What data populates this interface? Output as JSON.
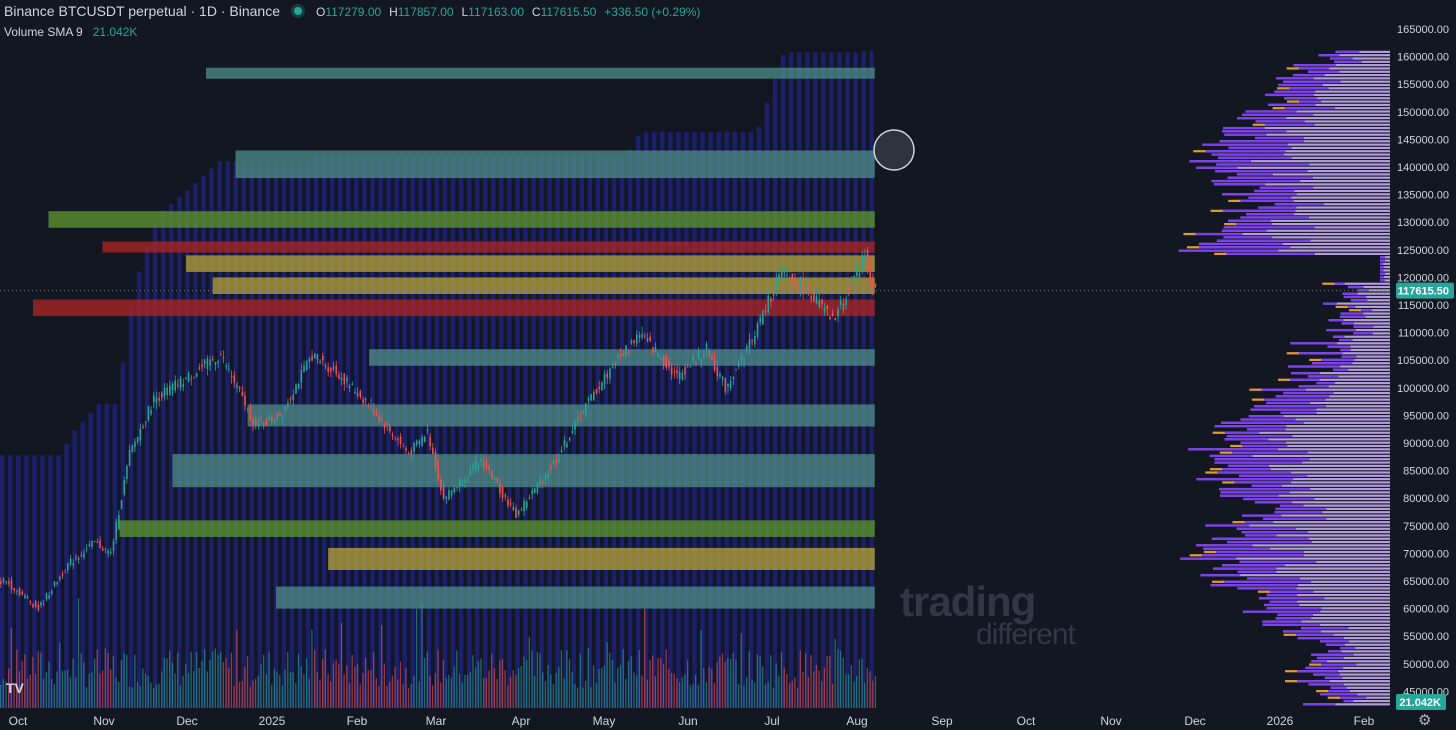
{
  "header": {
    "symbol": "Binance BTCUSDT perpetual · 1D · Binance",
    "open_label": "O",
    "open": "117279.00",
    "high_label": "H",
    "high": "117857.00",
    "low_label": "L",
    "low": "117163.00",
    "close_label": "C",
    "close": "117615.50",
    "change": "+336.50 (+0.29%)"
  },
  "volume_indicator": {
    "label": "Volume SMA 9",
    "value": "21.042K"
  },
  "watermark": {
    "line1": "trading",
    "line2": "different"
  },
  "tv_logo": "TV",
  "settings_icon": "gear-icon",
  "colors": {
    "background": "#131722",
    "heatmap_base": "#1c1f6b",
    "heatmap_low": "#4f8f8a",
    "heatmap_mid": "#5f9a2e",
    "heatmap_high": "#b8a538",
    "heatmap_max": "#b02626",
    "candle_up": "#26a69a",
    "candle_down": "#ef5350",
    "profile_light": "#b39ddb",
    "profile_mid": "#7e3ff2",
    "profile_accent": "#e39b2f",
    "last_price_tag": "#26a69a"
  },
  "chart_data": {
    "type": "candlestick",
    "timeframe": "1D",
    "x_axis": {
      "type": "date",
      "ticks": [
        "Oct",
        "Nov",
        "Dec",
        "2025",
        "Feb",
        "Mar",
        "Apr",
        "May",
        "Jun",
        "Jul",
        "Aug",
        "Sep",
        "Oct",
        "Nov",
        "Dec",
        "2026",
        "Feb"
      ]
    },
    "y_axis": {
      "ticks": [
        "165000.00",
        "160000.00",
        "155000.00",
        "150000.00",
        "145000.00",
        "140000.00",
        "135000.00",
        "130000.00",
        "125000.00",
        "120000.00",
        "115000.00",
        "110000.00",
        "105000.00",
        "100000.00",
        "95000.00",
        "90000.00",
        "85000.00",
        "80000.00",
        "75000.00",
        "70000.00",
        "65000.00",
        "60000.00",
        "55000.00",
        "50000.00",
        "45000.00"
      ],
      "range": [
        42000,
        167000
      ]
    },
    "last_price": 117615.5,
    "last_price_label": "117615.50",
    "volume_tag": "21.042K",
    "price_path": [
      [
        "2024-09-28",
        65000
      ],
      [
        "2024-10-10",
        60000
      ],
      [
        "2024-10-21",
        68000
      ],
      [
        "2024-10-31",
        72000
      ],
      [
        "2024-11-06",
        70000
      ],
      [
        "2024-11-13",
        88000
      ],
      [
        "2024-11-22",
        98000
      ],
      [
        "2024-12-05",
        102000
      ],
      [
        "2024-12-17",
        106000
      ],
      [
        "2024-12-30",
        93000
      ],
      [
        "2025-01-08",
        95000
      ],
      [
        "2025-01-20",
        106000
      ],
      [
        "2025-01-31",
        102000
      ],
      [
        "2025-02-10",
        97000
      ],
      [
        "2025-02-25",
        88000
      ],
      [
        "2025-03-04",
        92000
      ],
      [
        "2025-03-10",
        80000
      ],
      [
        "2025-03-24",
        87000
      ],
      [
        "2025-04-06",
        77000
      ],
      [
        "2025-04-21",
        87000
      ],
      [
        "2025-05-01",
        96000
      ],
      [
        "2025-05-12",
        104000
      ],
      [
        "2025-05-22",
        110000
      ],
      [
        "2025-06-05",
        102000
      ],
      [
        "2025-06-16",
        107000
      ],
      [
        "2025-06-23",
        100000
      ],
      [
        "2025-07-03",
        109000
      ],
      [
        "2025-07-14",
        121000
      ],
      [
        "2025-07-25",
        117000
      ],
      [
        "2025-08-02",
        112000
      ],
      [
        "2025-08-14",
        124000
      ],
      [
        "2025-08-17",
        117615
      ]
    ],
    "volume_profile_note": "",
    "heatmap_bands": [
      {
        "low": 156000,
        "high": 158000,
        "level": "low"
      },
      {
        "low": 138000,
        "high": 143000,
        "level": "low"
      },
      {
        "low": 129000,
        "high": 132000,
        "level": "mid"
      },
      {
        "low": 124500,
        "high": 126500,
        "level": "max"
      },
      {
        "low": 121000,
        "high": 124000,
        "level": "high"
      },
      {
        "low": 117000,
        "high": 120000,
        "level": "high"
      },
      {
        "low": 113000,
        "high": 116000,
        "level": "max"
      },
      {
        "low": 104000,
        "high": 107000,
        "level": "low"
      },
      {
        "low": 93000,
        "high": 97000,
        "level": "low"
      },
      {
        "low": 82000,
        "high": 88000,
        "level": "low"
      },
      {
        "low": 73000,
        "high": 76000,
        "level": "mid"
      },
      {
        "low": 67000,
        "high": 71000,
        "level": "high"
      },
      {
        "low": 60000,
        "high": 64000,
        "level": "low"
      }
    ]
  }
}
